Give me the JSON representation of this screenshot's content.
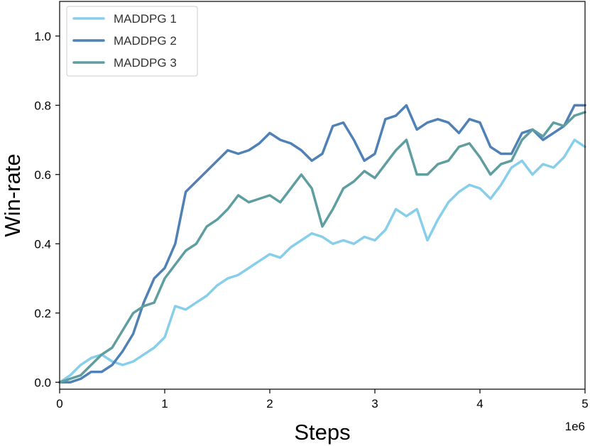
{
  "chart_data": {
    "type": "line",
    "xlabel": "Steps",
    "ylabel": "Win-rate",
    "x_multiplier_label": "1e6",
    "xlim": [
      0,
      5
    ],
    "ylim": [
      -0.02,
      1.1
    ],
    "xticks": [
      0,
      1,
      2,
      3,
      4,
      5
    ],
    "yticks": [
      0.0,
      0.2,
      0.4,
      0.6,
      0.8,
      1.0
    ],
    "xtick_labels": [
      "0",
      "1",
      "2",
      "3",
      "4",
      "5"
    ],
    "ytick_labels": [
      "0.0",
      "0.2",
      "0.4",
      "0.6",
      "0.8",
      "1.0"
    ],
    "grid": false,
    "legend_position": "top-left",
    "series": [
      {
        "name": "MADDPG 1",
        "color": "#87ceeb",
        "x": [
          0,
          0.1,
          0.2,
          0.3,
          0.4,
          0.5,
          0.6,
          0.7,
          0.8,
          0.9,
          1.0,
          1.1,
          1.2,
          1.3,
          1.4,
          1.5,
          1.6,
          1.7,
          1.8,
          1.9,
          2.0,
          2.1,
          2.2,
          2.3,
          2.4,
          2.5,
          2.6,
          2.7,
          2.8,
          2.9,
          3.0,
          3.1,
          3.2,
          3.3,
          3.4,
          3.5,
          3.6,
          3.7,
          3.8,
          3.9,
          4.0,
          4.1,
          4.2,
          4.3,
          4.4,
          4.5,
          4.6,
          4.7,
          4.8,
          4.9,
          5.0
        ],
        "y": [
          0.0,
          0.02,
          0.05,
          0.07,
          0.08,
          0.06,
          0.05,
          0.06,
          0.08,
          0.1,
          0.13,
          0.22,
          0.21,
          0.23,
          0.25,
          0.28,
          0.3,
          0.31,
          0.33,
          0.35,
          0.37,
          0.36,
          0.39,
          0.41,
          0.43,
          0.42,
          0.4,
          0.41,
          0.4,
          0.42,
          0.41,
          0.44,
          0.5,
          0.48,
          0.5,
          0.41,
          0.47,
          0.52,
          0.55,
          0.57,
          0.56,
          0.53,
          0.57,
          0.62,
          0.64,
          0.6,
          0.63,
          0.62,
          0.65,
          0.7,
          0.68
        ]
      },
      {
        "name": "MADDPG 2",
        "color": "#4f81b7",
        "x": [
          0,
          0.1,
          0.2,
          0.3,
          0.4,
          0.5,
          0.6,
          0.7,
          0.8,
          0.9,
          1.0,
          1.1,
          1.2,
          1.3,
          1.4,
          1.5,
          1.6,
          1.7,
          1.8,
          1.9,
          2.0,
          2.1,
          2.2,
          2.3,
          2.4,
          2.5,
          2.6,
          2.7,
          2.8,
          2.9,
          3.0,
          3.1,
          3.2,
          3.3,
          3.4,
          3.5,
          3.6,
          3.7,
          3.8,
          3.9,
          4.0,
          4.1,
          4.2,
          4.3,
          4.4,
          4.5,
          4.6,
          4.7,
          4.8,
          4.9,
          5.0
        ],
        "y": [
          0.0,
          0.0,
          0.01,
          0.03,
          0.03,
          0.05,
          0.09,
          0.14,
          0.23,
          0.3,
          0.33,
          0.4,
          0.55,
          0.58,
          0.61,
          0.64,
          0.67,
          0.66,
          0.67,
          0.69,
          0.72,
          0.7,
          0.69,
          0.67,
          0.64,
          0.66,
          0.74,
          0.75,
          0.7,
          0.64,
          0.66,
          0.76,
          0.77,
          0.8,
          0.73,
          0.75,
          0.76,
          0.75,
          0.72,
          0.76,
          0.75,
          0.68,
          0.66,
          0.66,
          0.72,
          0.73,
          0.7,
          0.72,
          0.74,
          0.8,
          0.8
        ]
      },
      {
        "name": "MADDPG 3",
        "color": "#5f9ea0",
        "x": [
          0,
          0.1,
          0.2,
          0.3,
          0.4,
          0.5,
          0.6,
          0.7,
          0.8,
          0.9,
          1.0,
          1.1,
          1.2,
          1.3,
          1.4,
          1.5,
          1.6,
          1.7,
          1.8,
          1.9,
          2.0,
          2.1,
          2.2,
          2.3,
          2.4,
          2.5,
          2.6,
          2.7,
          2.8,
          2.9,
          3.0,
          3.1,
          3.2,
          3.3,
          3.4,
          3.5,
          3.6,
          3.7,
          3.8,
          3.9,
          4.0,
          4.1,
          4.2,
          4.3,
          4.4,
          4.5,
          4.6,
          4.7,
          4.8,
          4.9,
          5.0
        ],
        "y": [
          0.0,
          0.01,
          0.02,
          0.05,
          0.08,
          0.1,
          0.15,
          0.2,
          0.22,
          0.23,
          0.3,
          0.34,
          0.38,
          0.4,
          0.45,
          0.47,
          0.5,
          0.54,
          0.52,
          0.53,
          0.54,
          0.52,
          0.56,
          0.6,
          0.56,
          0.45,
          0.5,
          0.56,
          0.58,
          0.61,
          0.59,
          0.63,
          0.67,
          0.7,
          0.6,
          0.6,
          0.63,
          0.64,
          0.68,
          0.69,
          0.65,
          0.6,
          0.63,
          0.64,
          0.7,
          0.73,
          0.71,
          0.75,
          0.74,
          0.77,
          0.78
        ]
      }
    ]
  }
}
